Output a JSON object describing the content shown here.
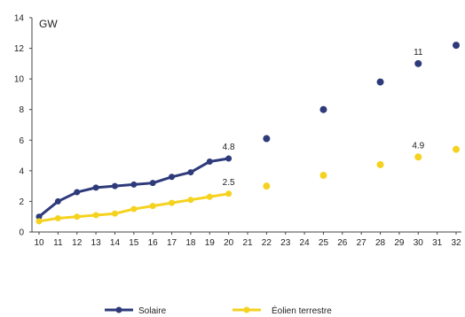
{
  "chart_data": {
    "type": "line",
    "unit_label": "GW",
    "x_ticks": [
      "10",
      "11",
      "12",
      "13",
      "14",
      "15",
      "16",
      "17",
      "18",
      "19",
      "20",
      "21",
      "22",
      "23",
      "24",
      "25",
      "26",
      "27",
      "28",
      "29",
      "30",
      "31",
      "32"
    ],
    "y_ticks": [
      "0",
      "2",
      "4",
      "6",
      "8",
      "10",
      "12",
      "14"
    ],
    "ylim": [
      0,
      14
    ],
    "xlim": [
      10,
      32
    ],
    "grid": false,
    "legend_position": "bottom",
    "series": [
      {
        "name": "Solaire",
        "color": "#2e3a7a",
        "historical": [
          {
            "x": 10,
            "y": 1.0
          },
          {
            "x": 11,
            "y": 2.0
          },
          {
            "x": 12,
            "y": 2.6
          },
          {
            "x": 13,
            "y": 2.9
          },
          {
            "x": 14,
            "y": 3.0
          },
          {
            "x": 15,
            "y": 3.1
          },
          {
            "x": 16,
            "y": 3.2
          },
          {
            "x": 17,
            "y": 3.6
          },
          {
            "x": 18,
            "y": 3.9
          },
          {
            "x": 19,
            "y": 4.6
          },
          {
            "x": 20,
            "y": 4.8
          }
        ],
        "projections": [
          {
            "x": 22,
            "y": 6.1
          },
          {
            "x": 25,
            "y": 8.0
          },
          {
            "x": 28,
            "y": 9.8
          },
          {
            "x": 30,
            "y": 11.0
          },
          {
            "x": 32,
            "y": 12.2
          }
        ],
        "labels": [
          {
            "x": 20,
            "y": 4.8,
            "text": "4.8"
          },
          {
            "x": 30,
            "y": 11.0,
            "text": "11"
          }
        ]
      },
      {
        "name": "Éolien terrestre",
        "color": "#f5d21f",
        "historical": [
          {
            "x": 10,
            "y": 0.7
          },
          {
            "x": 11,
            "y": 0.9
          },
          {
            "x": 12,
            "y": 1.0
          },
          {
            "x": 13,
            "y": 1.1
          },
          {
            "x": 14,
            "y": 1.2
          },
          {
            "x": 15,
            "y": 1.5
          },
          {
            "x": 16,
            "y": 1.7
          },
          {
            "x": 17,
            "y": 1.9
          },
          {
            "x": 18,
            "y": 2.1
          },
          {
            "x": 19,
            "y": 2.3
          },
          {
            "x": 20,
            "y": 2.5
          }
        ],
        "projections": [
          {
            "x": 22,
            "y": 3.0
          },
          {
            "x": 25,
            "y": 3.7
          },
          {
            "x": 28,
            "y": 4.4
          },
          {
            "x": 30,
            "y": 4.9
          },
          {
            "x": 32,
            "y": 5.4
          }
        ],
        "labels": [
          {
            "x": 20,
            "y": 2.5,
            "text": "2.5"
          },
          {
            "x": 30,
            "y": 4.9,
            "text": "4.9"
          }
        ]
      }
    ]
  }
}
